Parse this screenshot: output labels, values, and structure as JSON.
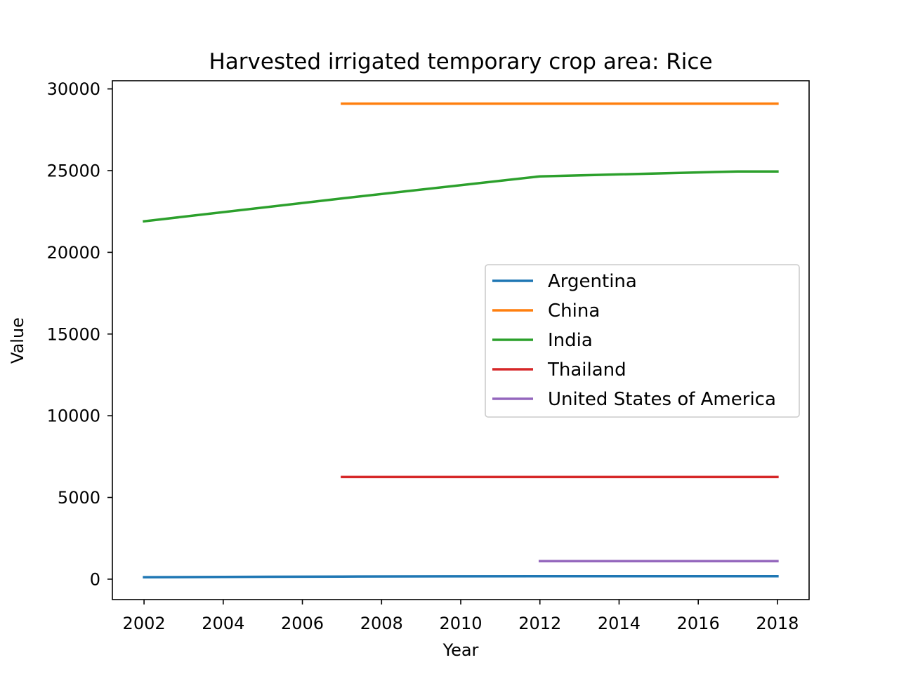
{
  "chart_data": {
    "type": "line",
    "title": "Harvested irrigated temporary crop area: Rice",
    "xlabel": "Year",
    "ylabel": "Value",
    "xlim": [
      2001.2,
      2018.8
    ],
    "ylim": [
      -1250,
      30500
    ],
    "xticks": [
      2002,
      2004,
      2006,
      2008,
      2010,
      2012,
      2014,
      2016,
      2018
    ],
    "yticks": [
      0,
      5000,
      10000,
      15000,
      20000,
      25000,
      30000
    ],
    "grid": false,
    "legend": {
      "position": "center-right"
    },
    "series": [
      {
        "name": "Argentina",
        "color": "#1f77b4",
        "points": [
          [
            2002,
            120
          ],
          [
            2007,
            160
          ],
          [
            2012,
            180
          ],
          [
            2017,
            180
          ],
          [
            2018,
            180
          ]
        ]
      },
      {
        "name": "China",
        "color": "#ff7f0e",
        "points": [
          [
            2007,
            29100
          ],
          [
            2012,
            29100
          ],
          [
            2017,
            29100
          ],
          [
            2018,
            29100
          ]
        ]
      },
      {
        "name": "India",
        "color": "#2ca02c",
        "points": [
          [
            2002,
            21900
          ],
          [
            2007,
            23300
          ],
          [
            2012,
            24650
          ],
          [
            2017,
            24950
          ],
          [
            2018,
            24950
          ]
        ]
      },
      {
        "name": "Thailand",
        "color": "#d62728",
        "points": [
          [
            2007,
            6250
          ],
          [
            2012,
            6250
          ],
          [
            2017,
            6250
          ],
          [
            2018,
            6250
          ]
        ]
      },
      {
        "name": "United States of America",
        "color": "#9467bd",
        "points": [
          [
            2012,
            1100
          ],
          [
            2017,
            1100
          ],
          [
            2018,
            1100
          ]
        ]
      }
    ]
  }
}
